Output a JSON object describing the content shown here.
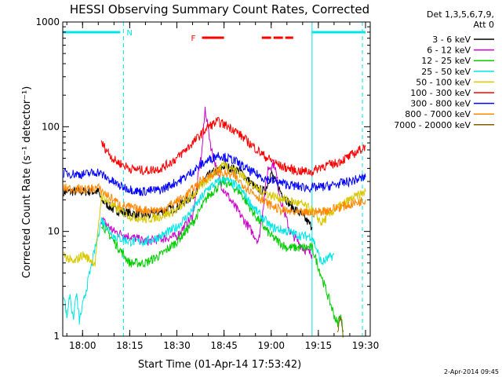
{
  "chart_data": {
    "type": "line",
    "title": "HESSI Observing Summary Count Rates, Corrected",
    "ylabel": "Corrected Count Rate (s⁻¹ detector⁻¹)",
    "xlabel": "Start Time (01-Apr-14 17:53:42)",
    "footer": "2-Apr-2014 09:45",
    "y_scale": "log",
    "ylim": [
      1,
      1000
    ],
    "xlim_minutes": [
      "17:53:42",
      "19:31:30"
    ],
    "y_ticks": [
      "1",
      "10",
      "100",
      "1000"
    ],
    "x_ticks": [
      {
        "t": "18:00",
        "label": "18:00"
      },
      {
        "t": "18:15",
        "label": "18:15"
      },
      {
        "t": "18:30",
        "label": "18:30"
      },
      {
        "t": "18:45",
        "label": "18:45"
      },
      {
        "t": "19:00",
        "label": "19:00"
      },
      {
        "t": "19:15",
        "label": "19:15"
      },
      {
        "t": "19:30",
        "label": "19:30"
      }
    ],
    "legend_header": [
      "Det 1,3,5,6,7,9,",
      "Att 0"
    ],
    "series": [
      {
        "name": "3 - 6 keV",
        "color": "#000000",
        "points": [
          [
            "17:54",
            24
          ],
          [
            "18:05",
            24
          ],
          [
            "18:06",
            20
          ],
          [
            "18:10",
            16
          ],
          [
            "18:20",
            14
          ],
          [
            "18:30",
            17
          ],
          [
            "18:35",
            22
          ],
          [
            "18:40",
            34
          ],
          [
            "18:45",
            42
          ],
          [
            "18:50",
            38
          ],
          [
            "18:55",
            26
          ],
          [
            "18:58",
            24
          ],
          [
            "19:00",
            36
          ],
          [
            "19:03",
            24
          ],
          [
            "19:06",
            18
          ],
          [
            "19:10",
            14
          ],
          [
            "19:13",
            11
          ]
        ]
      },
      {
        "name": "6 - 12 keV",
        "color": "#cc00cc",
        "points": [
          [
            "18:06",
            13
          ],
          [
            "18:10",
            10
          ],
          [
            "18:20",
            8
          ],
          [
            "18:30",
            9
          ],
          [
            "18:35",
            14
          ],
          [
            "18:38",
            60
          ],
          [
            "18:39",
            150
          ],
          [
            "18:41",
            60
          ],
          [
            "18:44",
            28
          ],
          [
            "18:48",
            18
          ],
          [
            "18:52",
            12
          ],
          [
            "18:56",
            8
          ],
          [
            "18:59",
            40
          ],
          [
            "19:01",
            45
          ],
          [
            "19:03",
            20
          ],
          [
            "19:06",
            10
          ],
          [
            "19:10",
            7
          ],
          [
            "19:13",
            6
          ]
        ]
      },
      {
        "name": "12 - 25 keV",
        "color": "#00cc00",
        "points": [
          [
            "18:06",
            12
          ],
          [
            "18:10",
            8
          ],
          [
            "18:15",
            5
          ],
          [
            "18:20",
            5
          ],
          [
            "18:25",
            6
          ],
          [
            "18:30",
            8
          ],
          [
            "18:35",
            12
          ],
          [
            "18:40",
            22
          ],
          [
            "18:45",
            30
          ],
          [
            "18:50",
            24
          ],
          [
            "18:55",
            14
          ],
          [
            "19:00",
            9
          ],
          [
            "19:05",
            7
          ],
          [
            "19:10",
            7
          ],
          [
            "19:13",
            7
          ],
          [
            "19:21",
            1.3
          ],
          [
            "19:22",
            1.6
          ],
          [
            "19:23",
            1.1
          ]
        ]
      },
      {
        "name": "25 - 50 keV",
        "color": "#00e5e5",
        "points": [
          [
            "17:54",
            2.6
          ],
          [
            "17:55",
            1.5
          ],
          [
            "17:56",
            2.6
          ],
          [
            "17:57",
            1.4
          ],
          [
            "17:58",
            2.6
          ],
          [
            "17:59",
            1.4
          ],
          [
            "18:06",
            13
          ],
          [
            "18:10",
            9
          ],
          [
            "18:15",
            8
          ],
          [
            "18:20",
            8
          ],
          [
            "18:25",
            9
          ],
          [
            "18:30",
            11
          ],
          [
            "18:35",
            16
          ],
          [
            "18:40",
            26
          ],
          [
            "18:45",
            32
          ],
          [
            "18:50",
            26
          ],
          [
            "18:55",
            16
          ],
          [
            "19:00",
            11
          ],
          [
            "19:05",
            10
          ],
          [
            "19:10",
            9
          ],
          [
            "19:13",
            9
          ],
          [
            "19:16",
            5
          ],
          [
            "19:20",
            6
          ]
        ]
      },
      {
        "name": "50 - 100 keV",
        "color": "#d8c800",
        "points": [
          [
            "17:54",
            6
          ],
          [
            "17:57",
            5
          ],
          [
            "18:00",
            6
          ],
          [
            "18:04",
            5
          ],
          [
            "18:06",
            22
          ],
          [
            "18:10",
            17
          ],
          [
            "18:15",
            14
          ],
          [
            "18:20",
            13
          ],
          [
            "18:25",
            14
          ],
          [
            "18:30",
            16
          ],
          [
            "18:35",
            22
          ],
          [
            "18:40",
            32
          ],
          [
            "18:45",
            45
          ],
          [
            "18:50",
            36
          ],
          [
            "18:55",
            26
          ],
          [
            "19:00",
            22
          ],
          [
            "19:05",
            20
          ],
          [
            "19:10",
            18
          ],
          [
            "19:13",
            16
          ],
          [
            "19:16",
            12
          ],
          [
            "19:20",
            16
          ],
          [
            "19:25",
            20
          ],
          [
            "19:30",
            24
          ]
        ]
      },
      {
        "name": "100 - 300 keV",
        "color": "#ff0000",
        "points": [
          [
            "18:06",
            70
          ],
          [
            "18:10",
            48
          ],
          [
            "18:15",
            40
          ],
          [
            "18:20",
            38
          ],
          [
            "18:25",
            40
          ],
          [
            "18:30",
            50
          ],
          [
            "18:35",
            70
          ],
          [
            "18:40",
            100
          ],
          [
            "18:43",
            112
          ],
          [
            "18:48",
            95
          ],
          [
            "18:53",
            70
          ],
          [
            "18:58",
            52
          ],
          [
            "19:03",
            42
          ],
          [
            "19:08",
            38
          ],
          [
            "19:13",
            37
          ],
          [
            "19:16",
            42
          ],
          [
            "19:20",
            44
          ],
          [
            "19:25",
            52
          ],
          [
            "19:30",
            65
          ]
        ]
      },
      {
        "name": "300 - 800 keV",
        "color": "#0000ff",
        "points": [
          [
            "17:54",
            36
          ],
          [
            "18:00",
            35
          ],
          [
            "18:05",
            37
          ],
          [
            "18:08",
            32
          ],
          [
            "18:12",
            27
          ],
          [
            "18:18",
            24
          ],
          [
            "18:25",
            25
          ],
          [
            "18:32",
            32
          ],
          [
            "18:38",
            44
          ],
          [
            "18:43",
            54
          ],
          [
            "18:48",
            48
          ],
          [
            "18:53",
            38
          ],
          [
            "18:58",
            32
          ],
          [
            "19:03",
            29
          ],
          [
            "19:08",
            27
          ],
          [
            "19:13",
            26
          ],
          [
            "19:18",
            27
          ],
          [
            "19:25",
            30
          ],
          [
            "19:30",
            33
          ]
        ]
      },
      {
        "name": "800 - 7000 keV",
        "color": "#ff8800",
        "points": [
          [
            "17:54",
            26
          ],
          [
            "18:00",
            25
          ],
          [
            "18:05",
            26
          ],
          [
            "18:08",
            22
          ],
          [
            "18:12",
            18
          ],
          [
            "18:18",
            16
          ],
          [
            "18:25",
            16
          ],
          [
            "18:32",
            21
          ],
          [
            "18:38",
            31
          ],
          [
            "18:43",
            37
          ],
          [
            "18:48",
            34
          ],
          [
            "18:53",
            25
          ],
          [
            "18:58",
            19
          ],
          [
            "19:03",
            16
          ],
          [
            "19:08",
            15
          ],
          [
            "19:13",
            15
          ],
          [
            "19:18",
            16
          ],
          [
            "19:25",
            18
          ],
          [
            "19:30",
            20
          ]
        ]
      },
      {
        "name": "7000 - 20000 keV",
        "color": "#806000",
        "points": [
          [
            "19:21",
            1.1
          ],
          [
            "19:22",
            1.6
          ],
          [
            "19:23",
            1.0
          ]
        ]
      }
    ],
    "annotations": {
      "attenuator_label": "N",
      "flare_label": "F",
      "cyan_bars": [
        [
          "17:53:42",
          "18:12"
        ],
        [
          "19:13",
          "19:30"
        ]
      ],
      "flare_bars": [
        [
          "18:38",
          "18:45"
        ],
        [
          "18:57",
          "19:07"
        ]
      ],
      "dashed_lines": [
        "18:13",
        "19:29"
      ],
      "solid_line": "19:13"
    }
  }
}
